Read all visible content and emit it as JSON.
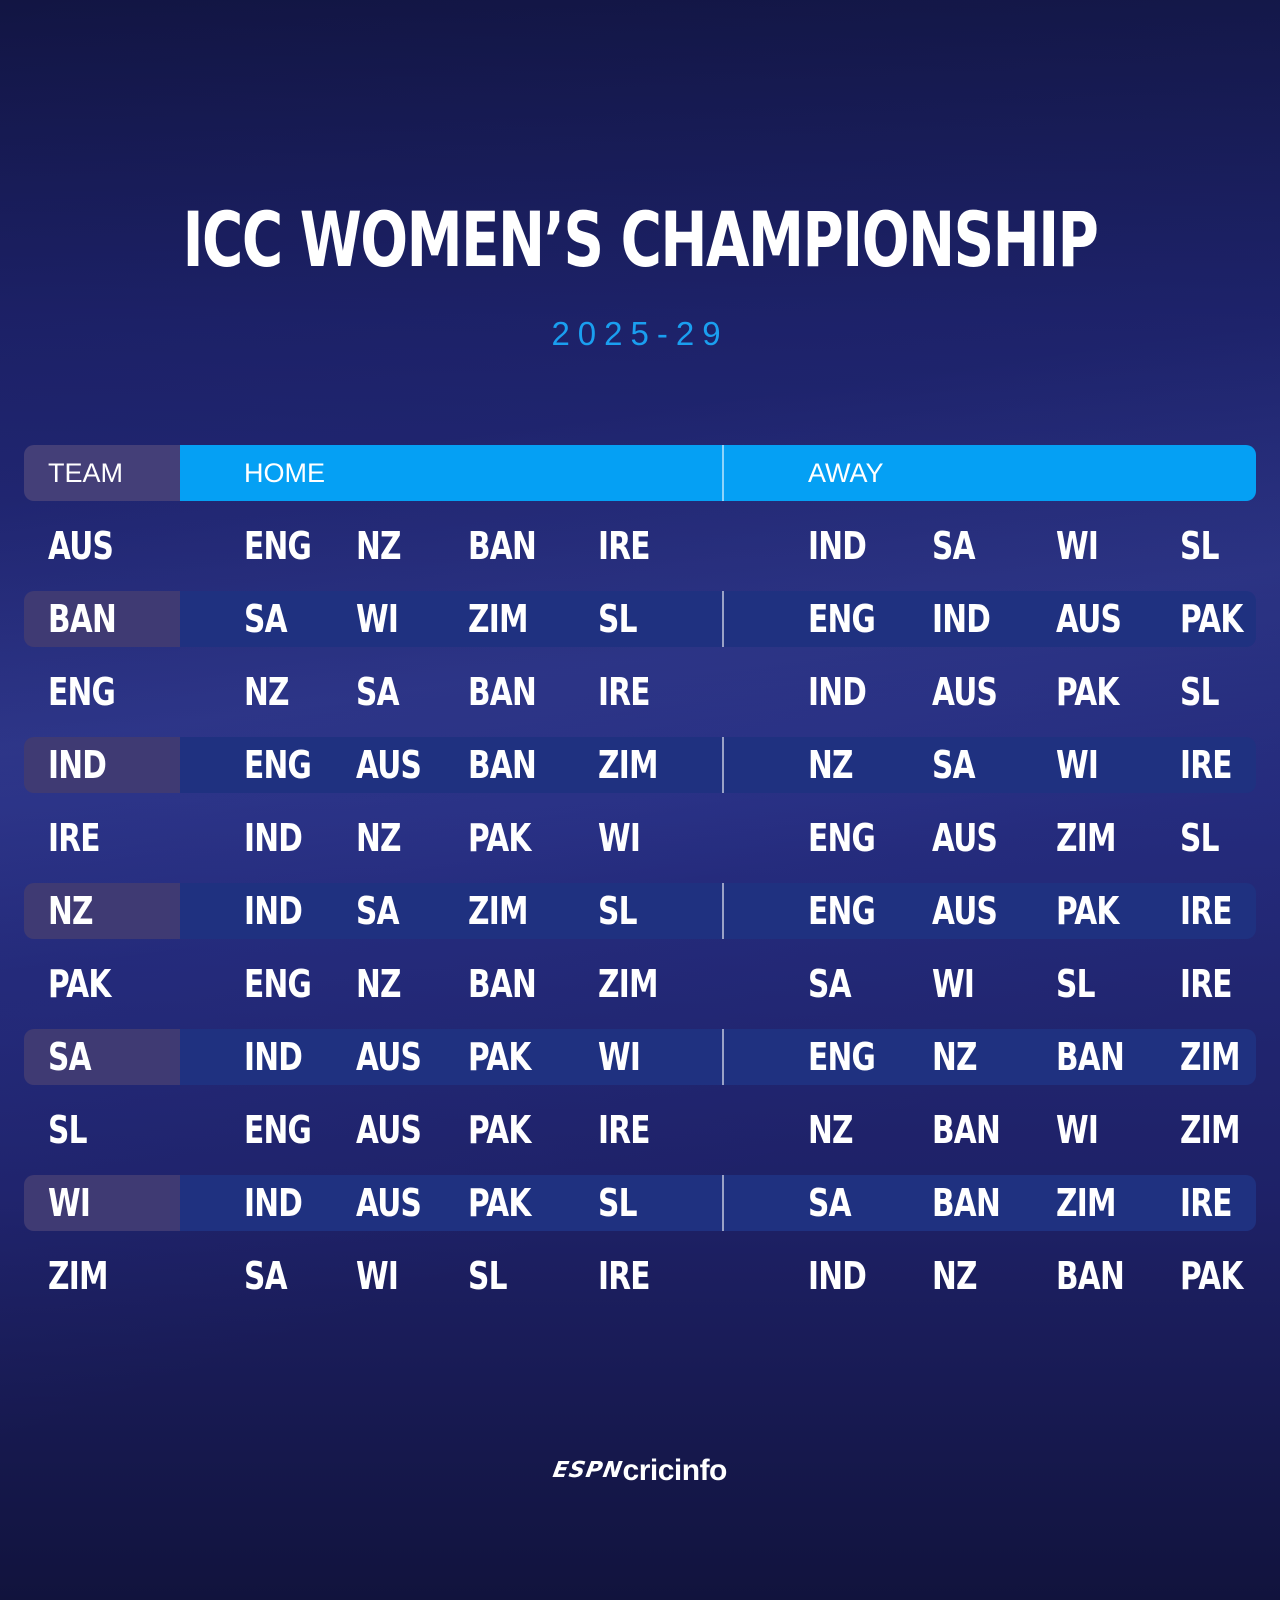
{
  "header": {
    "title": "ICC WOMEN’S CHAMPIONSHIP",
    "subtitle": "2025-29"
  },
  "table": {
    "columns": {
      "team": "TEAM",
      "home": "HOME",
      "away": "AWAY"
    },
    "rows": [
      {
        "team": "AUS",
        "home": [
          "ENG",
          "NZ",
          "BAN",
          "IRE"
        ],
        "away": [
          "IND",
          "SA",
          "WI",
          "SL"
        ]
      },
      {
        "team": "BAN",
        "home": [
          "SA",
          "WI",
          "ZIM",
          "SL"
        ],
        "away": [
          "ENG",
          "IND",
          "AUS",
          "PAK"
        ]
      },
      {
        "team": "ENG",
        "home": [
          "NZ",
          "SA",
          "BAN",
          "IRE"
        ],
        "away": [
          "IND",
          "AUS",
          "PAK",
          "SL"
        ]
      },
      {
        "team": "IND",
        "home": [
          "ENG",
          "AUS",
          "BAN",
          "ZIM"
        ],
        "away": [
          "NZ",
          "SA",
          "WI",
          "IRE"
        ]
      },
      {
        "team": "IRE",
        "home": [
          "IND",
          "NZ",
          "PAK",
          "WI"
        ],
        "away": [
          "ENG",
          "AUS",
          "ZIM",
          "SL"
        ]
      },
      {
        "team": "NZ",
        "home": [
          "IND",
          "SA",
          "ZIM",
          "SL"
        ],
        "away": [
          "ENG",
          "AUS",
          "PAK",
          "IRE"
        ]
      },
      {
        "team": "PAK",
        "home": [
          "ENG",
          "NZ",
          "BAN",
          "ZIM"
        ],
        "away": [
          "SA",
          "WI",
          "SL",
          "IRE"
        ]
      },
      {
        "team": "SA",
        "home": [
          "IND",
          "AUS",
          "PAK",
          "WI"
        ],
        "away": [
          "ENG",
          "NZ",
          "BAN",
          "ZIM"
        ]
      },
      {
        "team": "SL",
        "home": [
          "ENG",
          "AUS",
          "PAK",
          "IRE"
        ],
        "away": [
          "NZ",
          "BAN",
          "WI",
          "ZIM"
        ]
      },
      {
        "team": "WI",
        "home": [
          "IND",
          "AUS",
          "PAK",
          "SL"
        ],
        "away": [
          "SA",
          "BAN",
          "ZIM",
          "IRE"
        ]
      },
      {
        "team": "ZIM",
        "home": [
          "SA",
          "WI",
          "SL",
          "IRE"
        ],
        "away": [
          "IND",
          "NZ",
          "BAN",
          "PAK"
        ]
      }
    ]
  },
  "footer": {
    "logo_espn": "ESPN",
    "logo_cricinfo": "cricinfo"
  },
  "colors": {
    "accent": "#05a0f4",
    "subtitle": "#1a9ff0",
    "team_column": "#443f78",
    "row_shade": "#1f3180",
    "background": "#1b1f63"
  }
}
